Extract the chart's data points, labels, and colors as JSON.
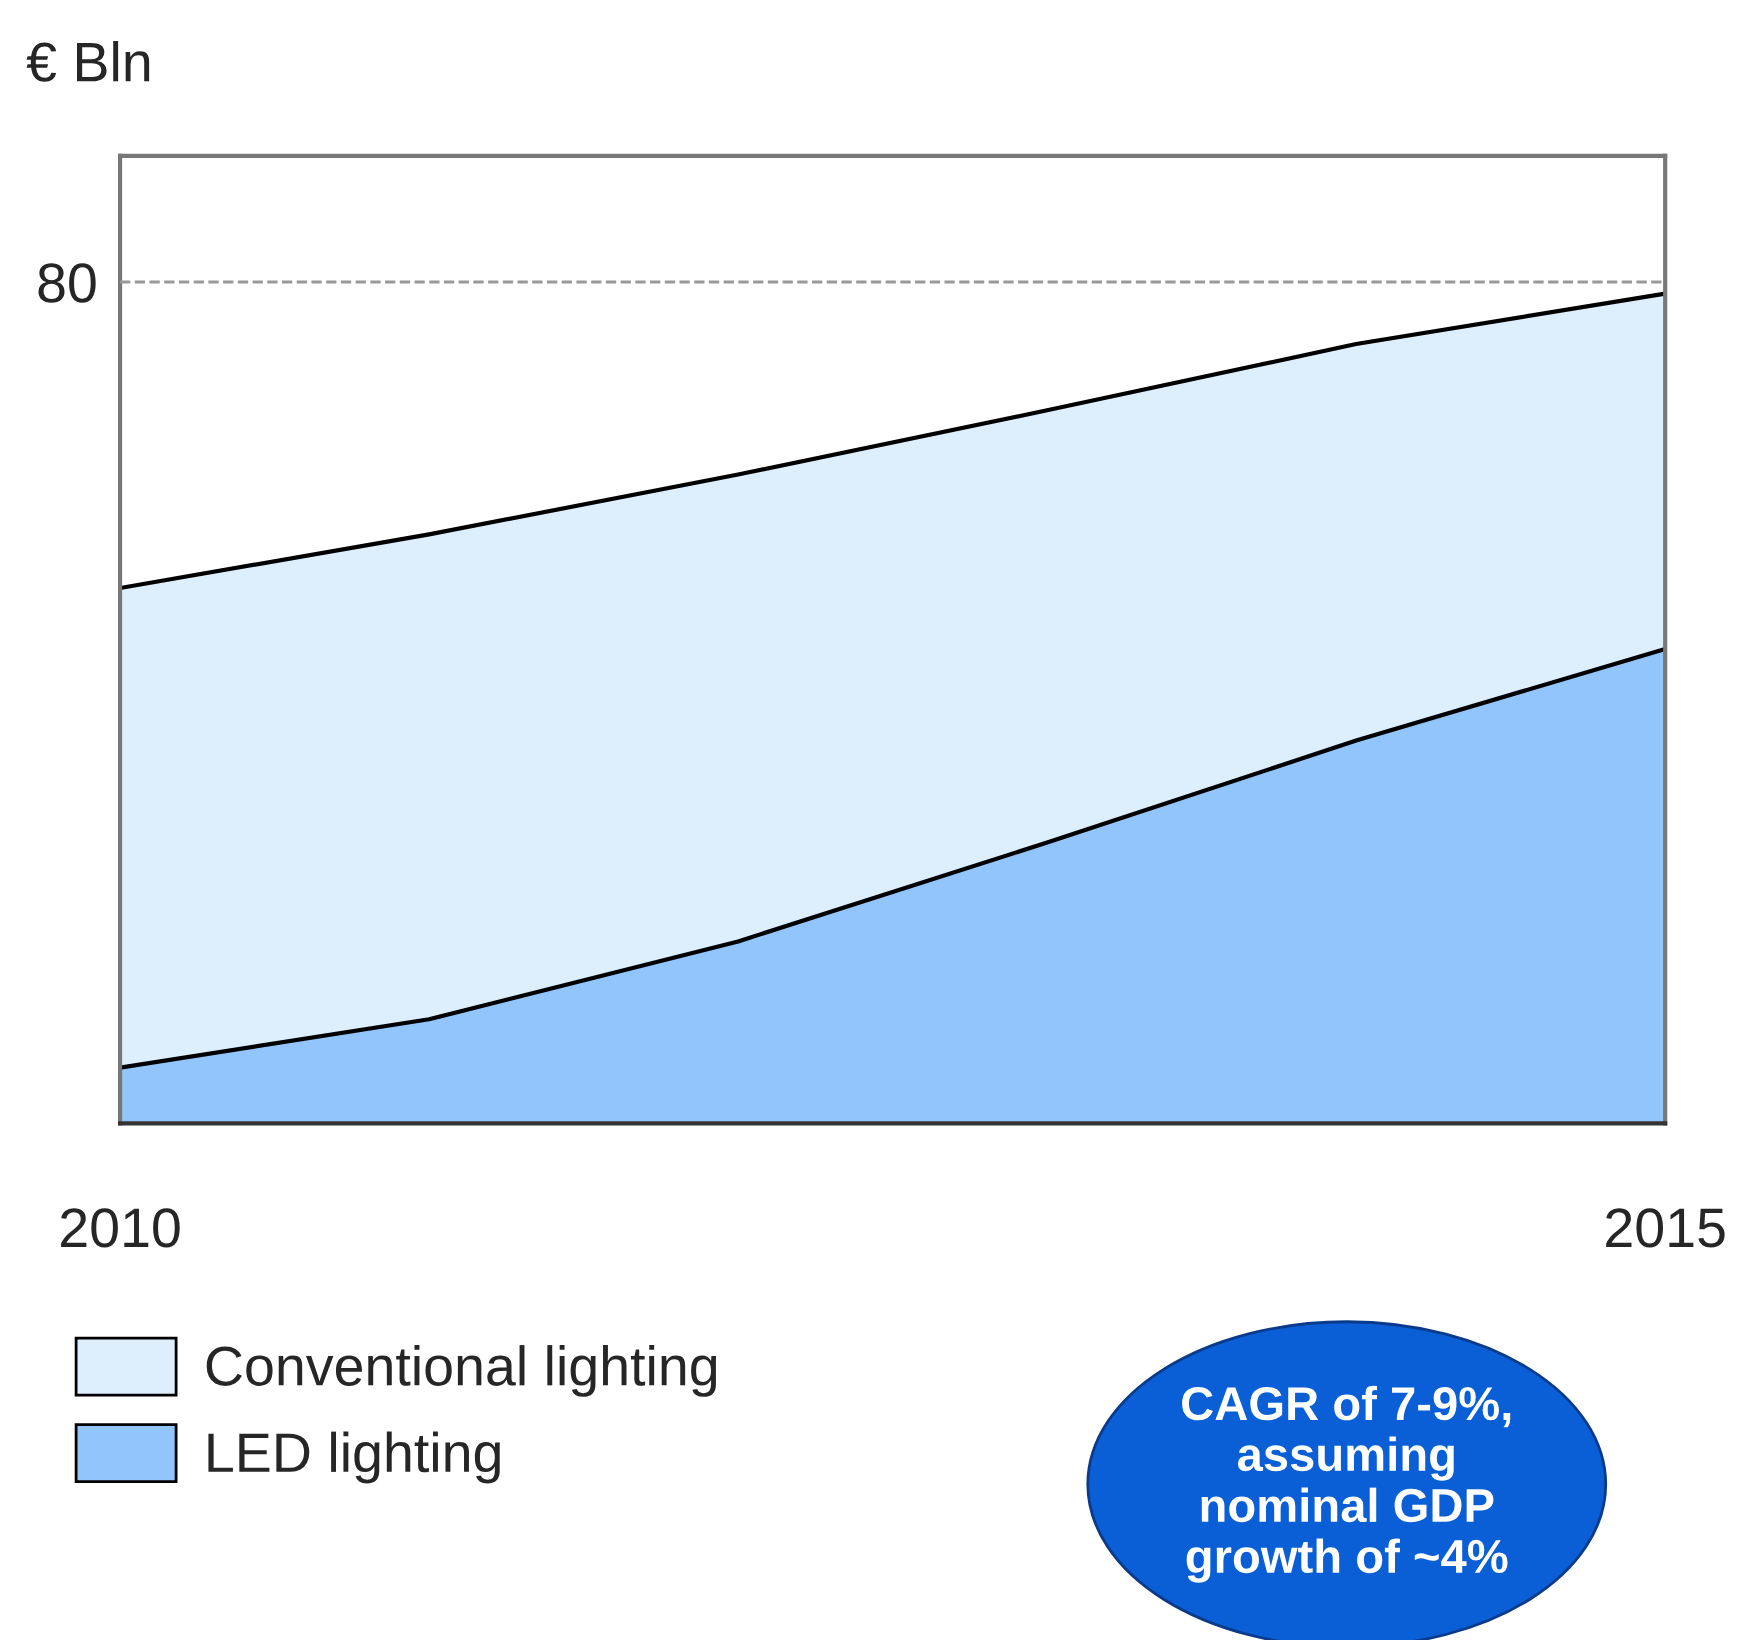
{
  "chart_data": {
    "type": "area",
    "ylabel": "€ Bln",
    "stacked": true,
    "x": [
      2010,
      2011,
      2012,
      2013,
      2014,
      2015
    ],
    "xlim": [
      2010,
      2015
    ],
    "xticks": [
      2010,
      2015
    ],
    "ylim": [
      0,
      92
    ],
    "yticks": [
      80
    ],
    "series": [
      {
        "name": "LED lighting",
        "color": "#92c5fb",
        "values": [
          5.3,
          9.9,
          17.3,
          26.7,
          36.4,
          45.1
        ]
      },
      {
        "name": "Conventional lighting",
        "color": "#ddeefd",
        "values": [
          45.6,
          46.1,
          44.4,
          41.1,
          37.7,
          33.8
        ]
      }
    ],
    "annotations": [
      "CAGR of 7-9%,\nassuming\nnominal GDP\ngrowth of ~4%"
    ],
    "legend": "bottom left",
    "grid": "y"
  }
}
